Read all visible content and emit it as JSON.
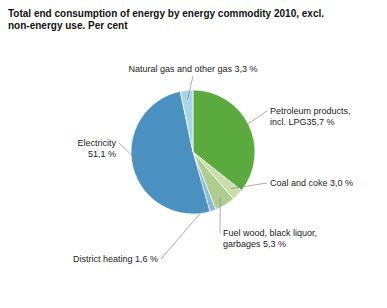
{
  "chart_data": {
    "type": "pie",
    "title": "Total end consumption of energy by energy commodity 2010, excl.\nnon-energy use. Per cent",
    "categories": [
      "Petroleum products,\nincl. LPG35,7 %",
      "Coal and coke 3,0 %",
      "Fuel wood, black liquor,\ngarbages 5,3 %",
      "District heating 1,6 %",
      "Electricity\n51,1 %",
      "Natural gas and other gas 3,3 %"
    ],
    "values": [
      35.7,
      3.0,
      5.3,
      1.6,
      51.1,
      3.3
    ],
    "colors": [
      "#5aaa3e",
      "#c8dda8",
      "#b0cc90",
      "#88bbd4",
      "#4a90c0",
      "#aad4e8"
    ]
  }
}
